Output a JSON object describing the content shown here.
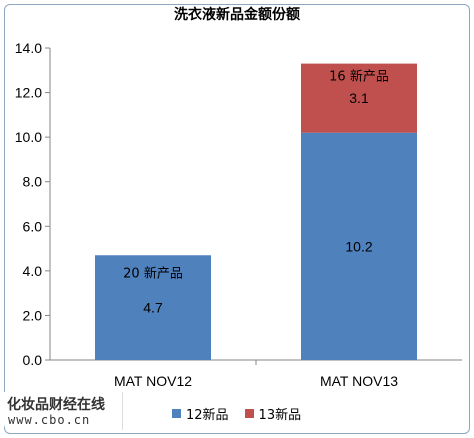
{
  "chart_data": {
    "type": "bar",
    "stacked": true,
    "title": "洗衣液新品金额份额",
    "categories": [
      "MAT NOV12",
      "MAT NOV13"
    ],
    "series": [
      {
        "name": "12新品",
        "values": [
          4.7,
          10.2
        ],
        "color": "#4f81bd"
      },
      {
        "name": "13新品",
        "values": [
          0,
          3.1
        ],
        "color": "#c0504d"
      }
    ],
    "data_labels": [
      [
        "4.7",
        ""
      ],
      [
        "10.2",
        "3.1"
      ]
    ],
    "annotations": [
      "20 新产品",
      "16 新产品"
    ],
    "ylim": [
      0,
      14
    ],
    "yticks": [
      "0.0",
      "2.0",
      "4.0",
      "6.0",
      "8.0",
      "10.0",
      "12.0",
      "14.0"
    ],
    "grid": false,
    "legend": "bottom"
  },
  "watermark": {
    "brand_text": "化妆品财经在线",
    "url": "www.cbo.cn"
  }
}
